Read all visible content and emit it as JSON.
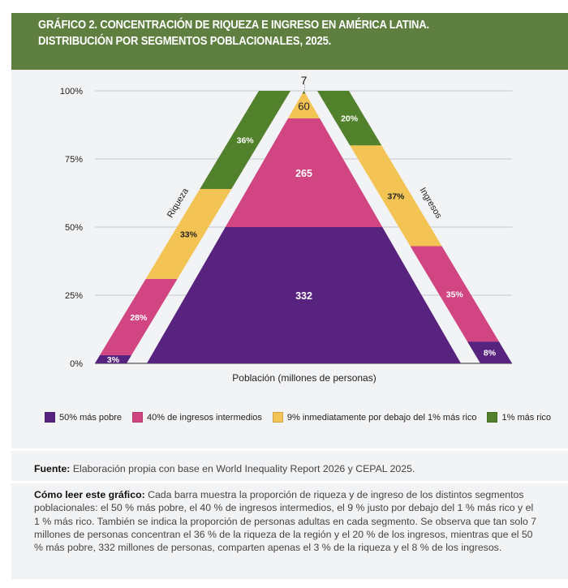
{
  "header": {
    "title_line1": "GRÁFICO 2. CONCENTRACIÓN DE RIQUEZA E INGRESO EN AMÉRICA LATINA.",
    "title_line2": "DISTRIBUCIÓN POR SEGMENTOS POBLACIONALES, 2025."
  },
  "chart_data": {
    "type": "bar",
    "title": "Concentración de riqueza e ingreso en América Latina. Distribución por segmentos poblacionales, 2025.",
    "xlabel": "Población (millones de personas)",
    "ylabel": "",
    "ylim": [
      0,
      100
    ],
    "yticks": [
      "0%",
      "25%",
      "50%",
      "75%",
      "100%"
    ],
    "grid": true,
    "legend_position": "bottom",
    "segments": [
      "50% más pobre",
      "40% de ingresos intermedios",
      "9% inmediatamente por debajo del 1% más rico",
      "1% más rico"
    ],
    "colors": [
      "#58237e",
      "#d14582",
      "#f3c353",
      "#52812c"
    ],
    "label_colors": [
      "#ffffff",
      "#ffffff",
      "#222222",
      "#ffffff"
    ],
    "population": {
      "name": "Población (millones de personas)",
      "values": [
        332,
        265,
        60,
        7
      ],
      "labels": [
        "332",
        "265",
        "60",
        "7"
      ]
    },
    "series": [
      {
        "name": "Riqueza",
        "values": [
          3,
          28,
          33,
          36
        ],
        "labels": [
          "3%",
          "28%",
          "33%",
          "36%"
        ]
      },
      {
        "name": "Ingresos",
        "values": [
          8,
          35,
          37,
          20
        ],
        "labels": [
          "8%",
          "35%",
          "37%",
          "20%"
        ]
      }
    ]
  },
  "footer": {
    "source_label": "Fuente:",
    "source_text": " Elaboración propia con base en World Inequality Report 2026 y CEPAL 2025.",
    "howto_label": "Cómo leer este gráfico:",
    "howto_text": " Cada barra muestra la proporción de riqueza y de ingreso de los distintos segmentos poblacionales: el 50 % más pobre, el 40 % de ingresos intermedios, el 9 % justo por debajo del 1 % más rico y el 1 % más rico. También se indica la proporción de personas adultas en cada segmento. Se observa que tan solo 7 millones de personas concentran el 36 % de la riqueza de la región y el 20 % de los ingresos, mientras que el 50 % más pobre, 332 millones de personas, comparten apenas el 3 % de la riqueza y el 8 % de los ingresos."
  }
}
